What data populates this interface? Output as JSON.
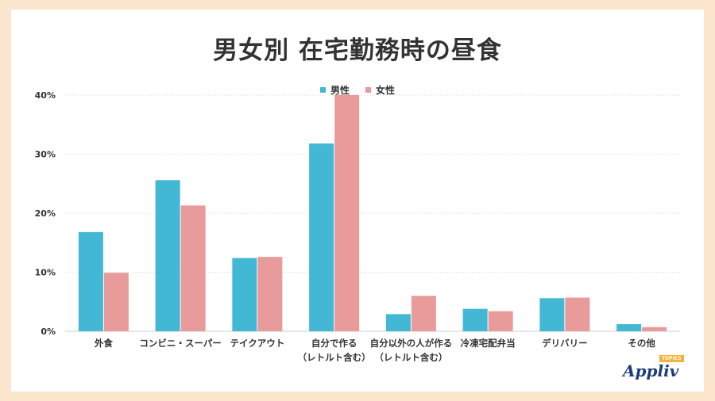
{
  "title": "男女別 在宅勤務時の昼食",
  "colors": {
    "male": "#42b8d5",
    "female": "#e99a9a",
    "grid": "#e3e3e3",
    "background": "#fbe6cd"
  },
  "chart_data": {
    "type": "bar",
    "title": "男女別 在宅勤務時の昼食",
    "categories": [
      [
        "外食"
      ],
      [
        "コンビニ・スーパー"
      ],
      [
        "テイクアウト"
      ],
      [
        "自分で作る",
        "（レトルト含む）"
      ],
      [
        "自分以外の人が作る",
        "（レトルト含む）"
      ],
      [
        "冷凍宅配弁当"
      ],
      [
        "デリバリー"
      ],
      [
        "その他"
      ]
    ],
    "series": [
      {
        "name": "男性",
        "color": "#42b8d5",
        "values": [
          16.8,
          25.6,
          12.4,
          31.8,
          2.9,
          3.8,
          5.6,
          1.2
        ]
      },
      {
        "name": "女性",
        "color": "#e99a9a",
        "values": [
          9.9,
          21.3,
          12.6,
          40.0,
          6.0,
          3.4,
          5.7,
          0.7
        ]
      }
    ],
    "yticks": [
      "0%",
      "10%",
      "20%",
      "30%",
      "40%"
    ],
    "ylim": [
      0,
      40
    ],
    "grid": true,
    "legend": "top-center"
  },
  "brand": {
    "name": "Appliv",
    "tag": "TOPICS"
  }
}
